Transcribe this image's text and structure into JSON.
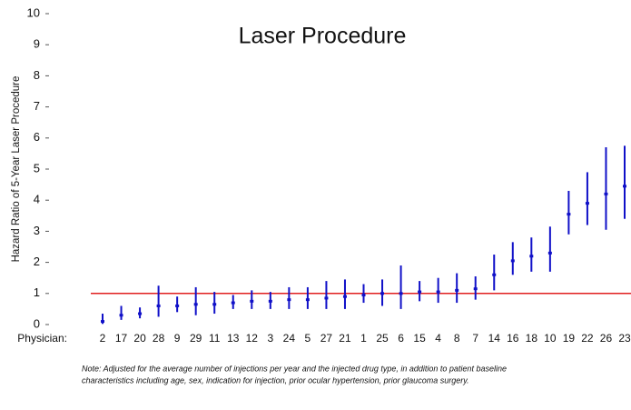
{
  "chart_data": {
    "type": "errorbar",
    "title": "Laser Procedure",
    "y_label": "Hazard Ratio of 5-Year Laser Procedure",
    "x_label": "Physician:",
    "categories": [
      "2",
      "17",
      "20",
      "28",
      "9",
      "29",
      "11",
      "13",
      "12",
      "3",
      "24",
      "5",
      "27",
      "21",
      "1",
      "25",
      "6",
      "15",
      "4",
      "8",
      "7",
      "14",
      "16",
      "18",
      "10",
      "19",
      "22",
      "26",
      "23"
    ],
    "series": [
      {
        "color": "#1010c8",
        "values": [
          0.1,
          0.3,
          0.35,
          0.6,
          0.6,
          0.65,
          0.65,
          0.7,
          0.75,
          0.75,
          0.8,
          0.8,
          0.85,
          0.9,
          0.95,
          1.0,
          1.0,
          1.05,
          1.05,
          1.1,
          1.15,
          1.6,
          2.05,
          2.2,
          2.3,
          3.55,
          3.9,
          4.2,
          4.45
        ],
        "lower": [
          0.02,
          0.15,
          0.2,
          0.25,
          0.4,
          0.3,
          0.35,
          0.5,
          0.5,
          0.5,
          0.5,
          0.5,
          0.5,
          0.5,
          0.7,
          0.6,
          0.5,
          0.75,
          0.7,
          0.7,
          0.8,
          1.1,
          1.6,
          1.7,
          1.7,
          2.9,
          3.2,
          3.05,
          3.4
        ],
        "upper": [
          0.35,
          0.6,
          0.55,
          1.25,
          0.9,
          1.2,
          1.05,
          0.95,
          1.1,
          1.05,
          1.2,
          1.2,
          1.4,
          1.45,
          1.3,
          1.45,
          1.9,
          1.4,
          1.5,
          1.65,
          1.55,
          2.25,
          2.65,
          2.8,
          3.15,
          4.3,
          4.9,
          5.7,
          5.75
        ]
      }
    ],
    "reference_line": {
      "value": 1,
      "color": "#e02020"
    },
    "ylim": [
      0,
      10
    ],
    "yticks": [
      0,
      1,
      2,
      3,
      4,
      5,
      6,
      7,
      8,
      9,
      10
    ],
    "note": [
      "Note: Adjusted for the average number of injections per year and the injected drug type, in addition to patient baseline",
      "characteristics including age, sex, indication for injection, prior ocular hypertension, prior glaucoma surgery."
    ]
  }
}
